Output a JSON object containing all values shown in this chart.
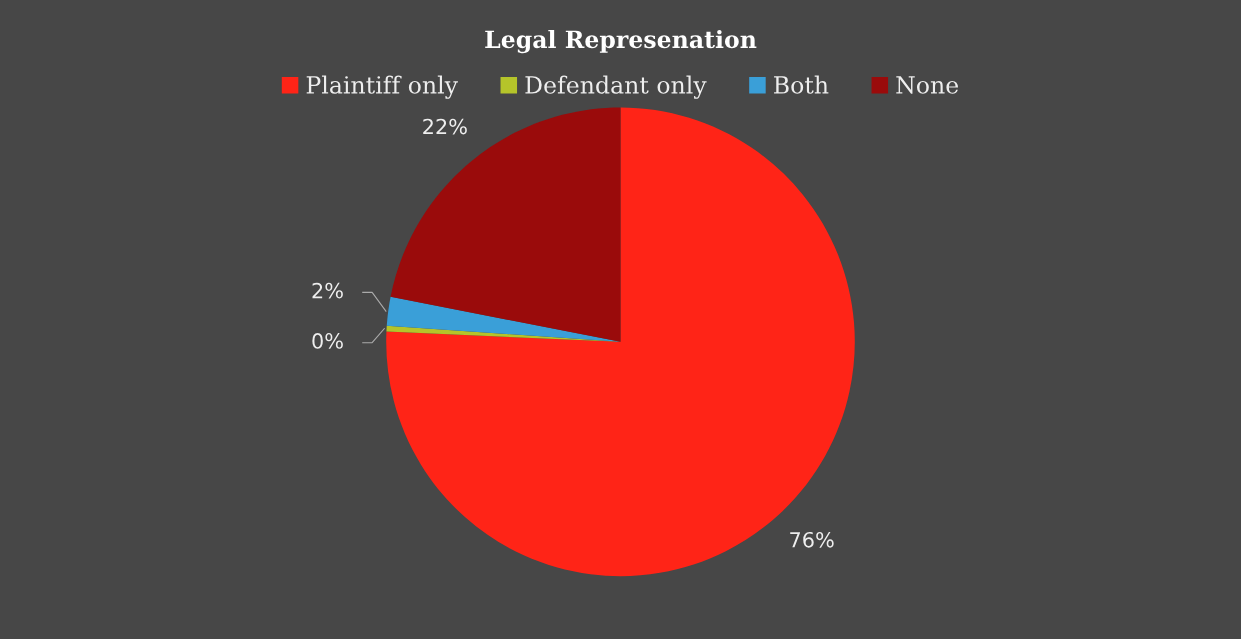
{
  "chart_data": {
    "type": "pie",
    "title": "Legal Represenation",
    "categories": [
      "Plaintiff only",
      "Defendant only",
      "Both",
      "None"
    ],
    "values": [
      76,
      0.4,
      2,
      22
    ],
    "value_labels": [
      "76%",
      "0%",
      "2%",
      "22%"
    ],
    "colors": [
      "#ff2417",
      "#b5c42a",
      "#3a9fd8",
      "#9a0b0b"
    ],
    "legend": "top"
  }
}
